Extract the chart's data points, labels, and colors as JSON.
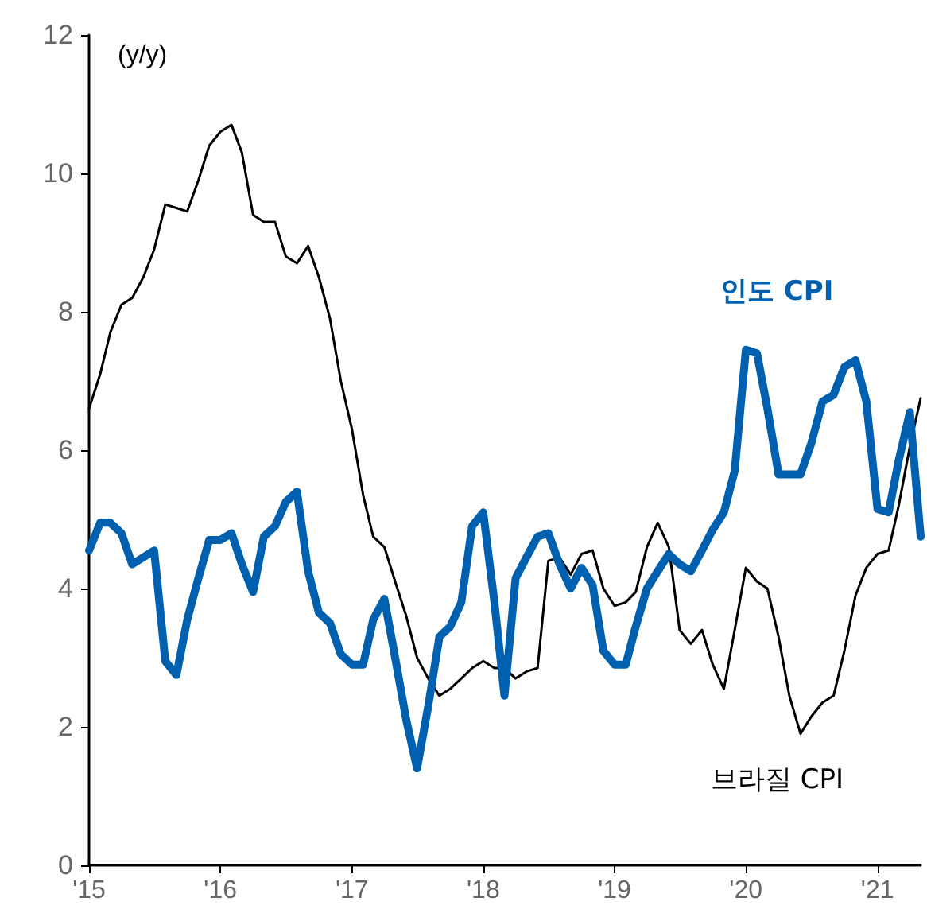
{
  "chart_data": {
    "type": "line",
    "ylabel": "(y/y)",
    "x": [
      "2015-01",
      "2015-02",
      "2015-03",
      "2015-04",
      "2015-05",
      "2015-06",
      "2015-07",
      "2015-08",
      "2015-09",
      "2015-10",
      "2015-11",
      "2015-12",
      "2016-01",
      "2016-02",
      "2016-03",
      "2016-04",
      "2016-05",
      "2016-06",
      "2016-07",
      "2016-08",
      "2016-09",
      "2016-10",
      "2016-11",
      "2016-12",
      "2017-01",
      "2017-02",
      "2017-03",
      "2017-04",
      "2017-05",
      "2017-06",
      "2017-07",
      "2017-08",
      "2017-09",
      "2017-10",
      "2017-11",
      "2017-12",
      "2018-01",
      "2018-02",
      "2018-03",
      "2018-04",
      "2018-05",
      "2018-06",
      "2018-07",
      "2018-08",
      "2018-09",
      "2018-10",
      "2018-11",
      "2018-12",
      "2019-01",
      "2019-02",
      "2019-03",
      "2019-04",
      "2019-05",
      "2019-06",
      "2019-07",
      "2019-08",
      "2019-09",
      "2019-10",
      "2019-11",
      "2019-12",
      "2020-01",
      "2020-02",
      "2020-03",
      "2020-04",
      "2020-05",
      "2020-06",
      "2020-07",
      "2020-08",
      "2020-09",
      "2020-10",
      "2020-11",
      "2020-12",
      "2021-01",
      "2021-02",
      "2021-03",
      "2021-04",
      "2021-05"
    ],
    "series": [
      {
        "name": "인도 CPI",
        "color": "#0060b0",
        "values": [
          4.55,
          4.95,
          4.95,
          4.8,
          4.35,
          4.45,
          4.55,
          2.95,
          2.75,
          3.55,
          4.15,
          4.7,
          4.7,
          4.8,
          4.35,
          3.95,
          4.75,
          4.9,
          5.25,
          5.4,
          4.25,
          3.65,
          3.5,
          3.05,
          2.9,
          2.9,
          3.55,
          3.85,
          3.0,
          2.1,
          1.4,
          2.3,
          3.3,
          3.45,
          3.8,
          4.9,
          5.1,
          3.8,
          2.45,
          4.15,
          4.45,
          4.75,
          4.8,
          4.35,
          4.0,
          4.3,
          4.05,
          3.1,
          2.9,
          2.9,
          3.45,
          4.0,
          4.25,
          4.5,
          4.35,
          4.25,
          4.55,
          4.85,
          5.1,
          5.7,
          7.45,
          7.4,
          6.6,
          5.65,
          5.65,
          5.65,
          6.1,
          6.7,
          6.8,
          7.2,
          7.3,
          6.7,
          5.15,
          5.1,
          5.85,
          6.55,
          4.75
        ]
      },
      {
        "name": "브라질 CPI",
        "color": "#000000",
        "values": [
          6.6,
          7.1,
          7.7,
          8.1,
          8.2,
          8.5,
          8.9,
          9.55,
          9.5,
          9.45,
          9.9,
          10.4,
          10.6,
          10.7,
          10.3,
          9.4,
          9.3,
          9.3,
          8.8,
          8.7,
          8.95,
          8.5,
          7.9,
          7.0,
          6.3,
          5.35,
          4.75,
          4.6,
          4.1,
          3.6,
          3.0,
          2.7,
          2.45,
          2.55,
          2.7,
          2.85,
          2.95,
          2.85,
          2.85,
          2.7,
          2.8,
          2.85,
          4.4,
          4.45,
          4.2,
          4.5,
          4.55,
          4.0,
          3.75,
          3.8,
          3.95,
          4.6,
          4.95,
          4.6,
          3.4,
          3.2,
          3.4,
          2.9,
          2.55,
          3.4,
          4.3,
          4.1,
          4.0,
          3.3,
          2.45,
          1.9,
          2.15,
          2.35,
          2.45,
          3.1,
          3.9,
          4.3,
          4.5,
          4.55,
          5.2,
          6.05,
          6.75
        ]
      }
    ],
    "xlim": [
      "2015-01",
      "2021-05"
    ],
    "xticks": [
      {
        "value": "2015-01",
        "label": "'15"
      },
      {
        "value": "2016-01",
        "label": "'16"
      },
      {
        "value": "2017-01",
        "label": "'17"
      },
      {
        "value": "2018-01",
        "label": "'18"
      },
      {
        "value": "2019-01",
        "label": "'19"
      },
      {
        "value": "2020-01",
        "label": "'20"
      },
      {
        "value": "2021-01",
        "label": "'21"
      }
    ],
    "ylim": [
      0,
      12
    ],
    "yticks": [
      0,
      2,
      4,
      6,
      8,
      10,
      12
    ],
    "grid": false,
    "legend": false,
    "marker": "none",
    "line_style": "solid"
  }
}
